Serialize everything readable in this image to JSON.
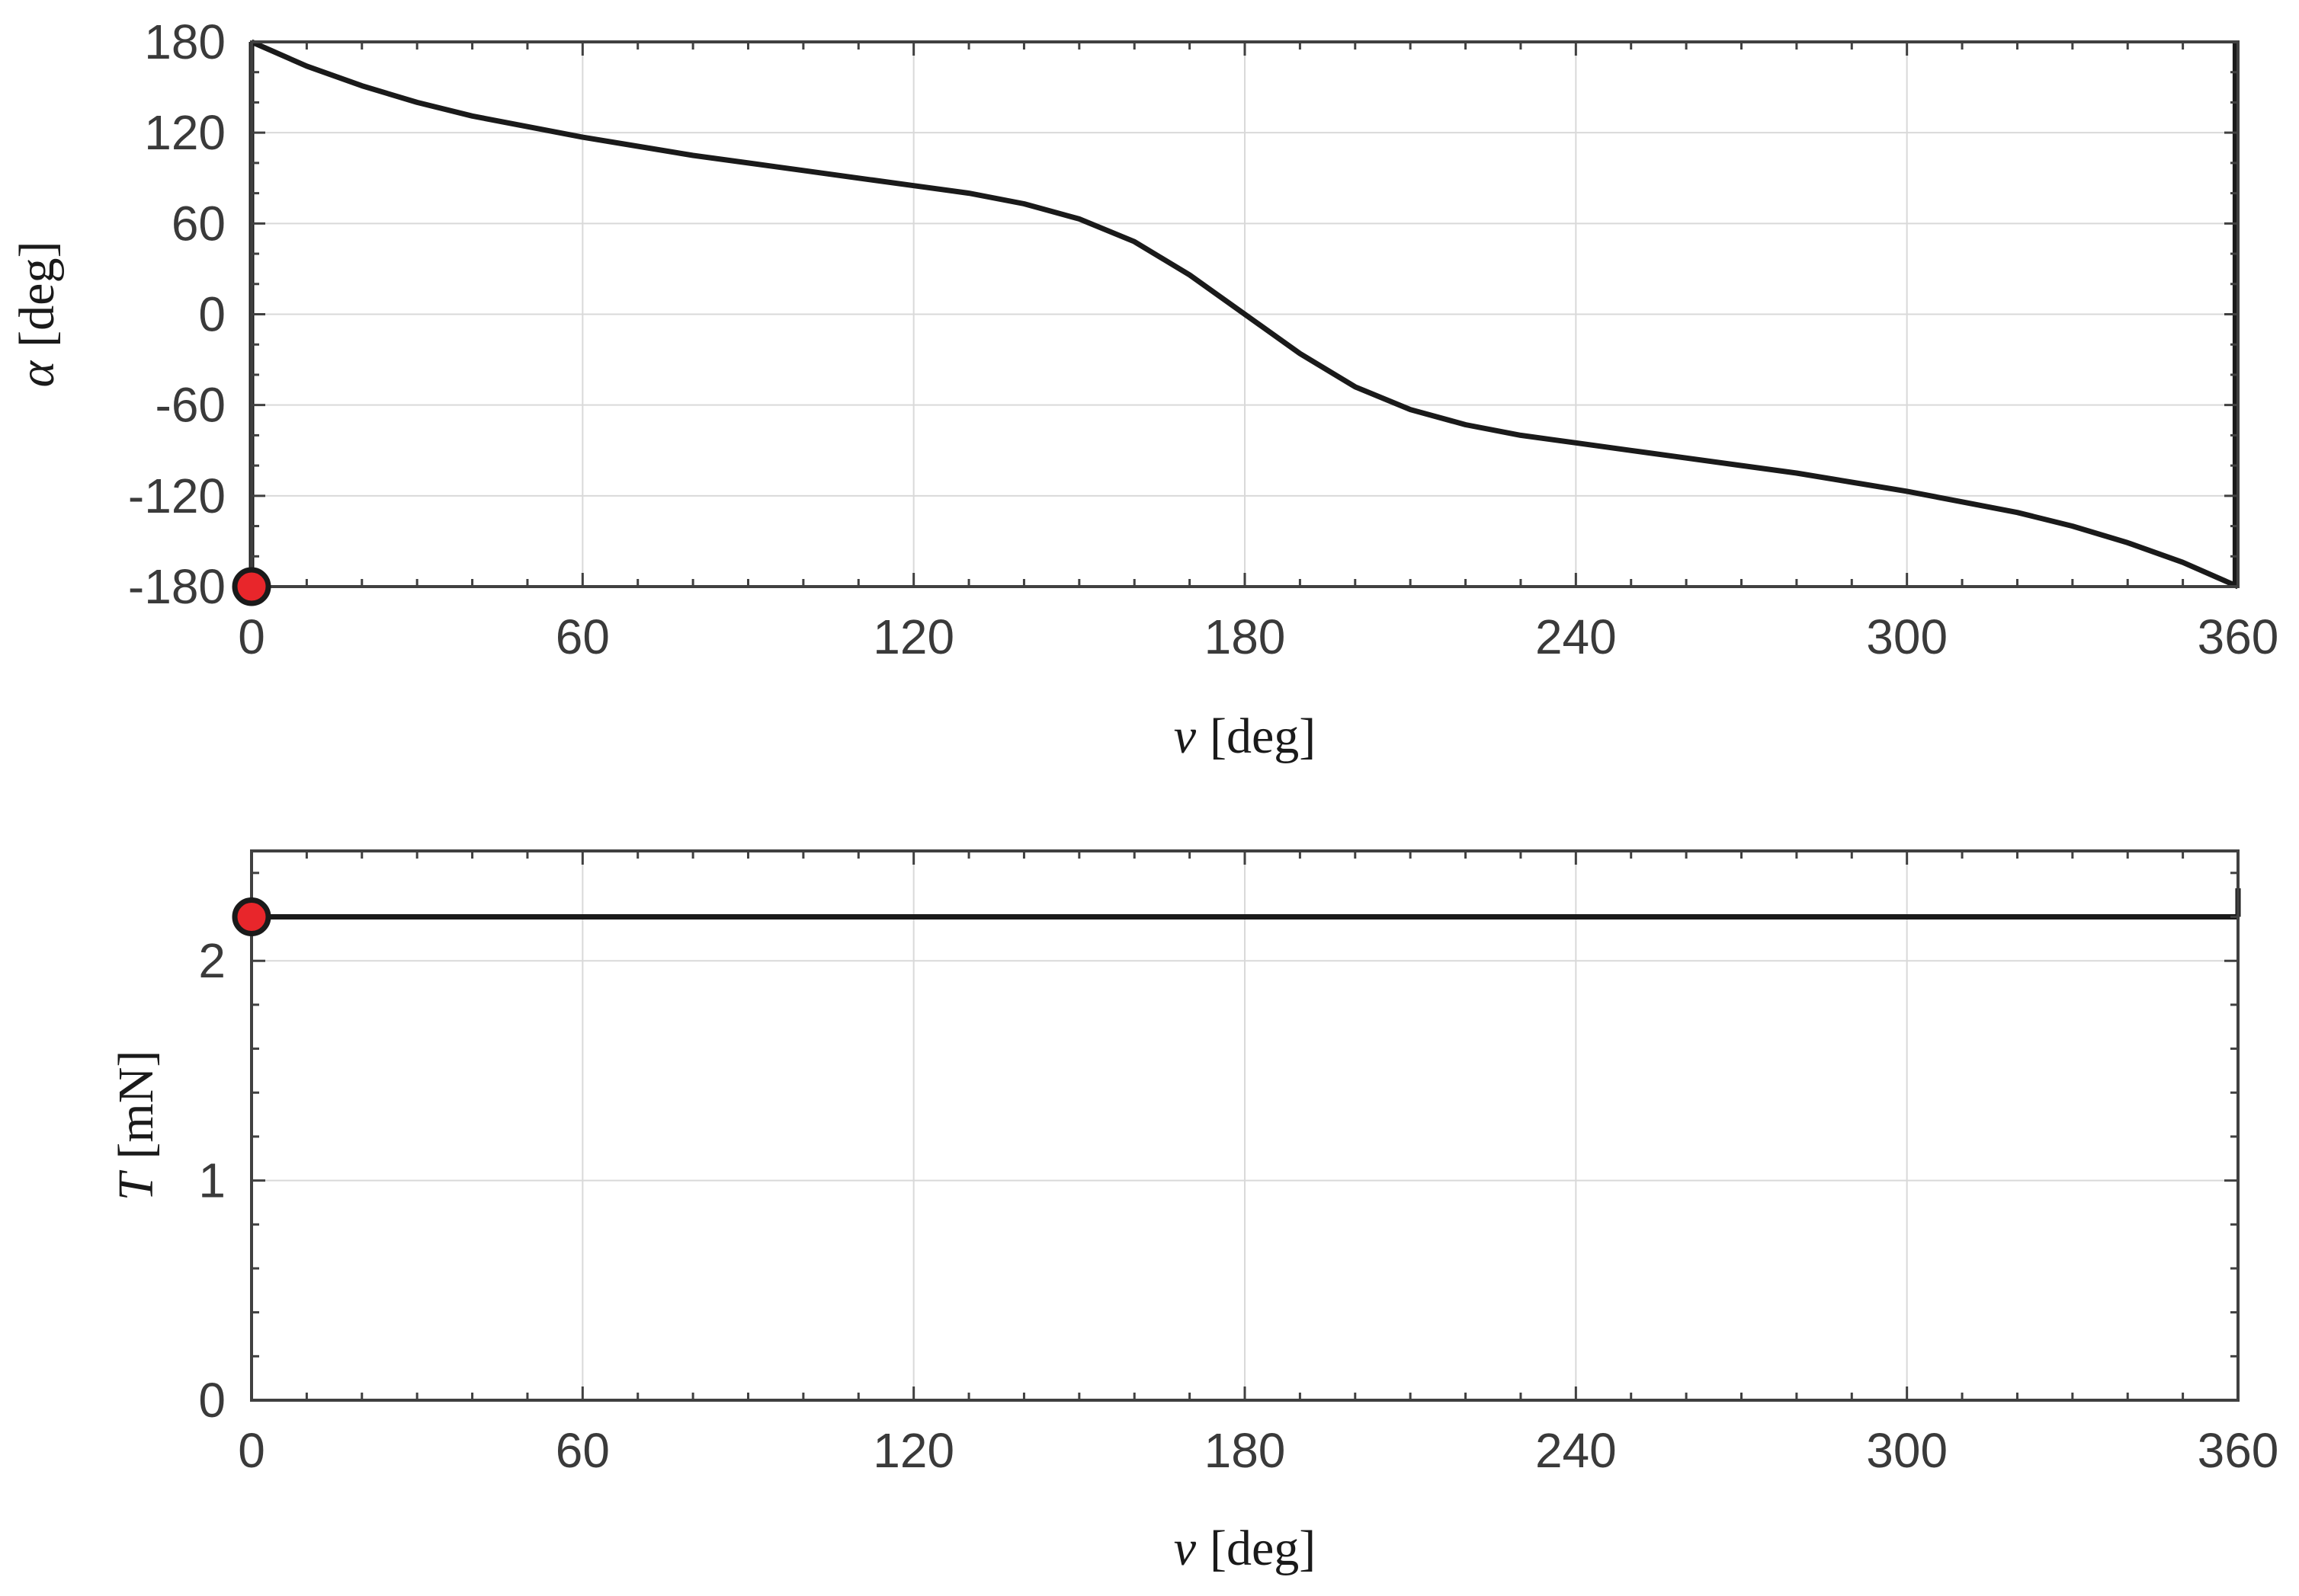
{
  "chart_data": [
    {
      "type": "line",
      "xlabel": {
        "symbol": "ν",
        "unit": "[deg]"
      },
      "ylabel": {
        "symbol": "α",
        "unit": "[deg]"
      },
      "xlim": [
        0,
        360
      ],
      "ylim": [
        -180,
        180
      ],
      "xticks": [
        "0",
        "60",
        "120",
        "180",
        "240",
        "300",
        "360"
      ],
      "yticks": [
        "-180",
        "-120",
        "-60",
        "0",
        "60",
        "120",
        "180"
      ],
      "xtick_values": [
        0,
        60,
        120,
        180,
        240,
        300,
        360
      ],
      "ytick_values": [
        -180,
        -120,
        -60,
        0,
        60,
        120,
        180
      ],
      "x_minor_step": 10,
      "y_minor_step": 20,
      "grid": true,
      "series": [
        {
          "x": [
            0,
            10,
            20,
            30,
            40,
            50,
            60,
            70,
            80,
            90,
            100,
            110,
            120,
            130,
            140,
            150,
            160,
            170,
            180,
            190,
            200,
            210,
            220,
            230,
            240,
            250,
            260,
            270,
            280,
            290,
            300,
            310,
            320,
            330,
            340,
            350,
            360
          ],
          "values": [
            180,
            164,
            151,
            140,
            131,
            124,
            117,
            111,
            105,
            100,
            95,
            90,
            85,
            80,
            73,
            63,
            48,
            26,
            0,
            -26,
            -48,
            -63,
            -73,
            -80,
            -85,
            -90,
            -95,
            -100,
            -105,
            -111,
            -117,
            -124,
            -131,
            -140,
            -151,
            -164,
            -180
          ],
          "color": "#1a1a1a"
        },
        {
          "x": [
            0,
            0
          ],
          "values": [
            -180,
            180
          ],
          "color": "#1a1a1a"
        },
        {
          "x": [
            359.5,
            359.5
          ],
          "values": [
            -180,
            180
          ],
          "color": "#1a1a1a"
        }
      ],
      "markers": [
        {
          "x": 0,
          "y": -180,
          "color": "#e8262b"
        }
      ]
    },
    {
      "type": "line",
      "xlabel": {
        "symbol": "ν",
        "unit": "[deg]"
      },
      "ylabel": {
        "symbol": "T",
        "unit": "[mN]"
      },
      "xlim": [
        0,
        360
      ],
      "ylim": [
        0,
        2.5
      ],
      "xticks": [
        "0",
        "60",
        "120",
        "180",
        "240",
        "300",
        "360"
      ],
      "yticks": [
        "0",
        "1",
        "2"
      ],
      "xtick_values": [
        0,
        60,
        120,
        180,
        240,
        300,
        360
      ],
      "ytick_values": [
        0,
        1,
        2
      ],
      "x_minor_step": 10,
      "y_minor_step": 0.2,
      "grid": true,
      "series": [
        {
          "x": [
            0,
            360
          ],
          "values": [
            2.2,
            2.2
          ],
          "color": "#1a1a1a"
        },
        {
          "x": [
            360,
            360
          ],
          "values": [
            2.2,
            2.33
          ],
          "color": "#1a1a1a"
        }
      ],
      "markers": [
        {
          "x": 0,
          "y": 2.2,
          "color": "#e8262b"
        }
      ]
    }
  ]
}
